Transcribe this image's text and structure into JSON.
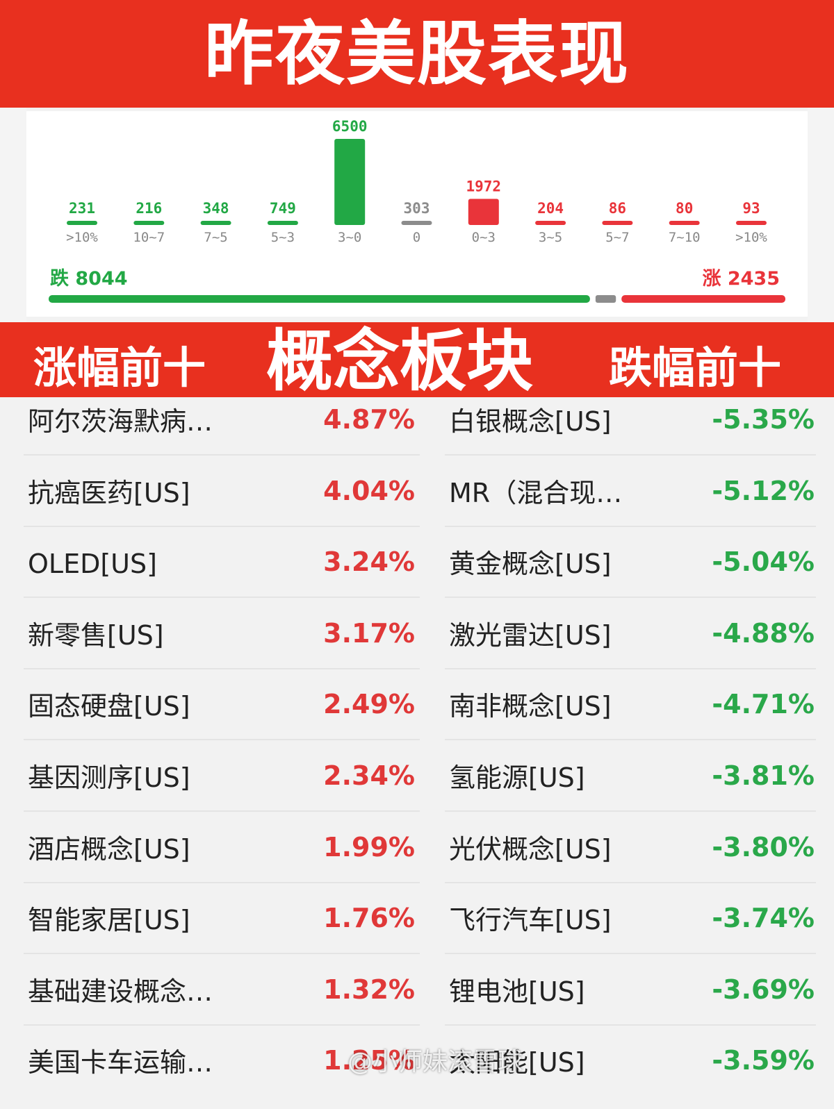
{
  "title": "昨夜美股表现",
  "chart_data": {
    "type": "bar",
    "categories": [
      ">10%",
      "10~7",
      "7~5",
      "5~3",
      "3~0",
      "0",
      "0~3",
      "3~5",
      "5~7",
      "7~10",
      ">10%"
    ],
    "values": [
      231,
      216,
      348,
      749,
      6500,
      303,
      1972,
      204,
      86,
      80,
      93
    ],
    "colors": [
      "#22a845",
      "#22a845",
      "#22a845",
      "#22a845",
      "#22a845",
      "#8c8c8c",
      "#e9343a",
      "#e9343a",
      "#e9343a",
      "#e9343a",
      "#e9343a"
    ]
  },
  "summary": {
    "down_label": "跌 8044",
    "up_label": "涨 2435",
    "down_count": 8044,
    "flat_count": 303,
    "up_count": 2435,
    "down_color": "#22a845",
    "flat_color": "#8c8c8c",
    "up_color": "#e9343a"
  },
  "concept": {
    "left_title": "涨幅前十",
    "center_title": "概念板块",
    "right_title": "跌幅前十"
  },
  "rows": [
    {
      "gain_name": "阿尔茨海默病…",
      "gain_pct": "4.87%",
      "loss_name": "白银概念[US]",
      "loss_pct": "-5.35%"
    },
    {
      "gain_name": "抗癌医药[US]",
      "gain_pct": "4.04%",
      "loss_name": "MR（混合现…",
      "loss_pct": "-5.12%"
    },
    {
      "gain_name": "OLED[US]",
      "gain_pct": "3.24%",
      "loss_name": "黄金概念[US]",
      "loss_pct": "-5.04%"
    },
    {
      "gain_name": "新零售[US]",
      "gain_pct": "3.17%",
      "loss_name": "激光雷达[US]",
      "loss_pct": "-4.88%"
    },
    {
      "gain_name": "固态硬盘[US]",
      "gain_pct": "2.49%",
      "loss_name": "南非概念[US]",
      "loss_pct": "-4.71%"
    },
    {
      "gain_name": "基因测序[US]",
      "gain_pct": "2.34%",
      "loss_name": "氢能源[US]",
      "loss_pct": "-3.81%"
    },
    {
      "gain_name": "酒店概念[US]",
      "gain_pct": "1.99%",
      "loss_name": "光伏概念[US]",
      "loss_pct": "-3.80%"
    },
    {
      "gain_name": "智能家居[US]",
      "gain_pct": "1.76%",
      "loss_name": "飞行汽车[US]",
      "loss_pct": "-3.74%"
    },
    {
      "gain_name": "基础建设概念…",
      "gain_pct": "1.32%",
      "loss_name": "锂电池[US]",
      "loss_pct": "-3.69%"
    },
    {
      "gain_name": "美国卡车运输…",
      "gain_pct": "1.25%",
      "loss_name": "太阳能[US]",
      "loss_pct": "-3.59%"
    }
  ],
  "watermark": "@小师妹滚雪球"
}
